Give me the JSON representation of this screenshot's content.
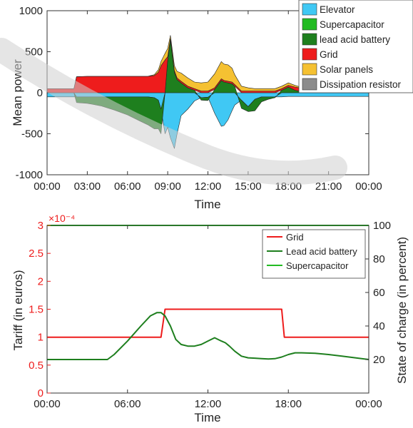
{
  "chart_data": [
    {
      "type": "area",
      "xlabel": "Time",
      "ylabel": "Mean power",
      "xlim": [
        0,
        24
      ],
      "ylim": [
        -1000,
        1000
      ],
      "x_ticks": [
        "00:00",
        "03:00",
        "06:00",
        "09:00",
        "12:00",
        "15:00",
        "18:00",
        "21:00",
        "00:00"
      ],
      "y_ticks": [
        "-1000",
        "-500",
        "0",
        "500",
        "1000"
      ],
      "legend": {
        "placement": "top-right",
        "entries": [
          {
            "name": "Elevator",
            "color": "#40c8f4"
          },
          {
            "name": "Supercapacitor",
            "color": "#22bb22"
          },
          {
            "name": "lead acid battery",
            "color": "#1e7f1e"
          },
          {
            "name": "Grid",
            "color": "#ee1c1c"
          },
          {
            "name": "Solar panels",
            "color": "#f5c132"
          },
          {
            "name": "Dissipation resistor",
            "color": "#8c8c8c"
          }
        ]
      },
      "grid": false,
      "x": [
        0,
        2,
        2.2,
        3,
        4,
        5,
        6,
        7,
        7.5,
        8,
        8.3,
        8.5,
        8.8,
        9,
        9.2,
        9.5,
        9.7,
        10,
        10.5,
        11,
        11.5,
        12,
        12.5,
        13,
        13.2,
        13.5,
        13.8,
        14,
        14.5,
        15,
        15.5,
        16,
        16.5,
        17,
        17.5,
        18,
        18.5,
        19,
        20,
        21,
        22,
        23,
        24
      ],
      "series": [
        {
          "name": "Elevator",
          "values": [
            -50,
            -50,
            -50,
            -50,
            -50,
            -50,
            -50,
            -50,
            -50,
            -60,
            -90,
            -200,
            -500,
            -420,
            -550,
            -680,
            -500,
            -280,
            -200,
            -100,
            -60,
            -55,
            -250,
            -410,
            -400,
            -330,
            -220,
            -150,
            -90,
            -170,
            -80,
            -50,
            -50,
            -50,
            -50,
            -45,
            -45,
            -45,
            -45,
            -45,
            -45,
            -45,
            -45
          ]
        },
        {
          "name": "lead acid battery",
          "values": [
            0,
            0,
            -70,
            -80,
            -110,
            -160,
            -220,
            -300,
            -340,
            -380,
            -350,
            -300,
            0,
            400,
            640,
            250,
            160,
            120,
            60,
            30,
            -30,
            -40,
            40,
            150,
            130,
            120,
            110,
            80,
            -100,
            -60,
            -140,
            -60,
            -30,
            -10,
            30,
            70,
            30,
            10,
            0,
            0,
            0,
            0,
            0
          ]
        },
        {
          "name": "Grid",
          "values": [
            50,
            50,
            195,
            200,
            200,
            200,
            200,
            200,
            200,
            210,
            250,
            330,
            400,
            40,
            20,
            20,
            20,
            20,
            20,
            20,
            20,
            20,
            20,
            20,
            20,
            20,
            20,
            20,
            20,
            20,
            20,
            20,
            20,
            20,
            20,
            20,
            40,
            45,
            45,
            45,
            45,
            45,
            45
          ]
        },
        {
          "name": "Solar panels",
          "values": [
            0,
            0,
            0,
            0,
            0,
            0,
            0,
            0,
            0,
            10,
            30,
            50,
            80,
            100,
            40,
            60,
            80,
            100,
            100,
            80,
            100,
            110,
            170,
            210,
            200,
            200,
            170,
            120,
            60,
            40,
            30,
            30,
            30,
            30,
            30,
            30,
            20,
            10,
            0,
            0,
            0,
            0,
            0
          ]
        }
      ]
    },
    {
      "type": "line",
      "exponent_label": "×10⁻⁴",
      "xlabel": "Time",
      "ylabel": "Tariff (in euros)",
      "y2label": "State of charge (in percent)",
      "xlim": [
        0,
        24
      ],
      "ylim": [
        0,
        3
      ],
      "y2lim": [
        0,
        100
      ],
      "x_ticks": [
        "00:00",
        "06:00",
        "12:00",
        "18:00",
        "00:00"
      ],
      "y_ticks": [
        "0",
        "0.5",
        "1",
        "1.5",
        "2",
        "2.5",
        "3"
      ],
      "y2_ticks": [
        "20",
        "40",
        "60",
        "80",
        "100"
      ],
      "grid": false,
      "legend": {
        "placement": "top-right"
      },
      "series": [
        {
          "name": "Grid",
          "axis": "left",
          "color": "#ee1c1c",
          "x": [
            0,
            8.5,
            8.8,
            17.5,
            17.7,
            24
          ],
          "y": [
            1,
            1,
            1.5,
            1.5,
            1,
            1
          ]
        },
        {
          "name": "Lead acid battery",
          "axis": "right",
          "color": "#1e7f1e",
          "x": [
            0,
            4.5,
            5,
            6,
            7,
            7.7,
            8.2,
            8.5,
            8.8,
            9.2,
            9.6,
            10,
            10.5,
            11,
            11.5,
            12,
            12.5,
            13,
            13.3,
            13.6,
            14,
            14.5,
            15,
            15.5,
            16,
            16.5,
            17,
            17.5,
            18,
            18.5,
            19,
            20,
            21,
            22,
            23,
            24
          ],
          "y": [
            20,
            20,
            23,
            31,
            40,
            46,
            48,
            48,
            46,
            40,
            32,
            29,
            28,
            28,
            29,
            31,
            33,
            31,
            30,
            28,
            25,
            22,
            21,
            20.8,
            20.5,
            20.3,
            20.5,
            21.5,
            23,
            24,
            24,
            23.7,
            23,
            22,
            21,
            20
          ]
        },
        {
          "name": "Supercapacitor",
          "axis": "right",
          "color": "#22bb22",
          "x": [
            0,
            24
          ],
          "y": [
            100,
            100
          ]
        }
      ]
    }
  ]
}
